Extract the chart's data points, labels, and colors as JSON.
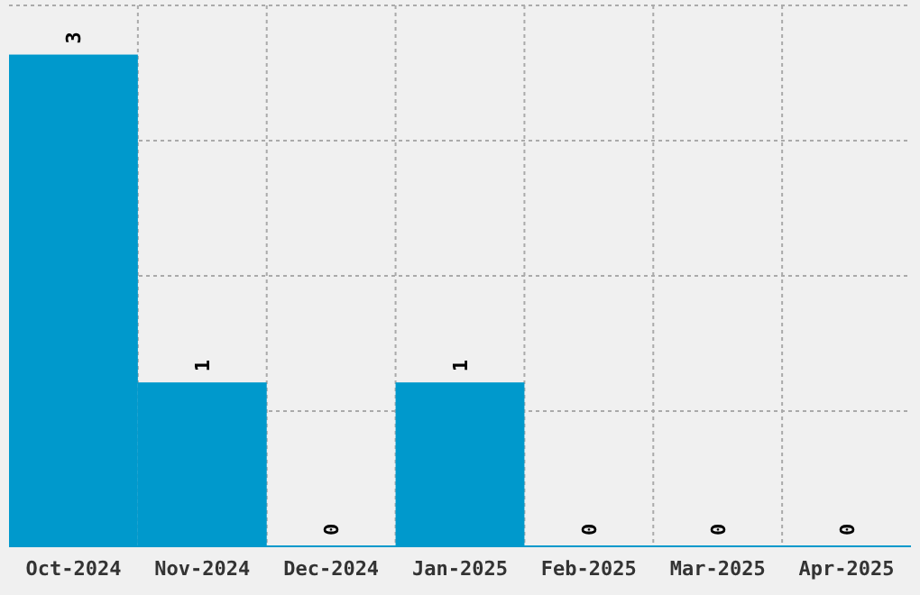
{
  "chart_data": {
    "type": "bar",
    "categories": [
      "Oct-2024",
      "Nov-2024",
      "Dec-2024",
      "Jan-2025",
      "Feb-2025",
      "Mar-2025",
      "Apr-2025"
    ],
    "values": [
      3,
      1,
      0,
      1,
      0,
      0,
      0
    ],
    "color": "#0099cc",
    "data_labels": true,
    "grid": true,
    "tick_labels": "x",
    "ylim": [
      0,
      3.3
    ],
    "yticks": [
      {
        "value": 0,
        "label": null
      },
      {
        "value": 0.825,
        "label": null
      },
      {
        "value": 1.65,
        "label": null
      },
      {
        "value": 2.475,
        "label": null
      },
      {
        "value": 3.3,
        "label": null
      }
    ]
  }
}
